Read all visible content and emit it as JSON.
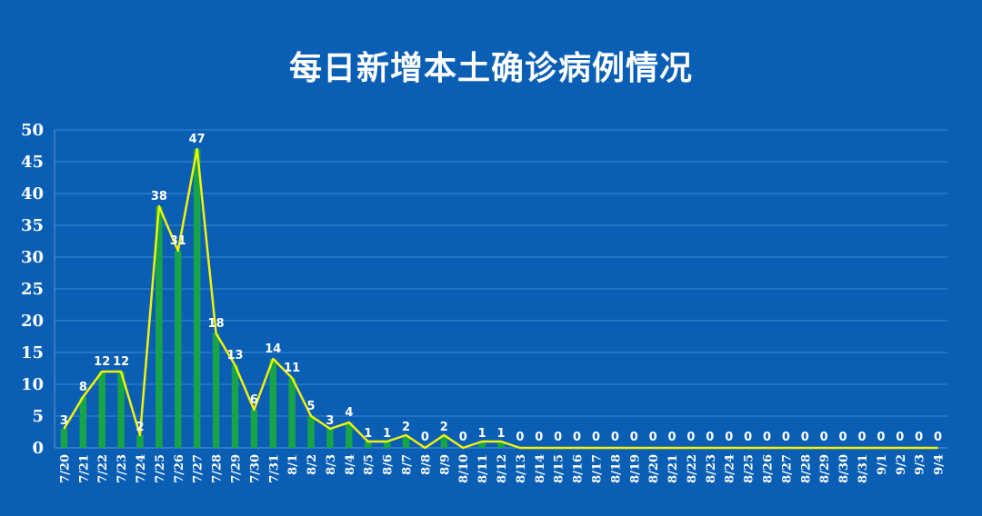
{
  "chart_data": {
    "type": "bar",
    "title": "每日新增本土确诊病例情况",
    "categories": [
      "7/20",
      "7/21",
      "7/22",
      "7/23",
      "7/24",
      "7/25",
      "7/26",
      "7/27",
      "7/28",
      "7/29",
      "7/30",
      "7/31",
      "8/1",
      "8/2",
      "8/3",
      "8/4",
      "8/5",
      "8/6",
      "8/7",
      "8/8",
      "8/9",
      "8/10",
      "8/11",
      "8/12",
      "8/13",
      "8/14",
      "8/15",
      "8/16",
      "8/17",
      "8/18",
      "8/19",
      "8/20",
      "8/21",
      "8/22",
      "8/23",
      "8/24",
      "8/25",
      "8/26",
      "8/27",
      "8/28",
      "8/29",
      "8/30",
      "8/31",
      "9/1",
      "9/2",
      "9/3",
      "9/4"
    ],
    "series": [
      {
        "kind": "bar",
        "values": [
          3,
          8,
          12,
          12,
          2,
          38,
          31,
          47,
          18,
          13,
          6,
          14,
          11,
          5,
          3,
          4,
          1,
          1,
          2,
          0,
          2,
          0,
          1,
          1,
          0,
          0,
          0,
          0,
          0,
          0,
          0,
          0,
          0,
          0,
          0,
          0,
          0,
          0,
          0,
          0,
          0,
          0,
          0,
          0,
          0,
          0,
          0
        ]
      },
      {
        "kind": "line",
        "values": [
          3,
          8,
          12,
          12,
          2,
          38,
          31,
          47,
          18,
          13,
          6,
          14,
          11,
          5,
          3,
          4,
          1,
          1,
          2,
          0,
          2,
          0,
          1,
          1,
          0,
          0,
          0,
          0,
          0,
          0,
          0,
          0,
          0,
          0,
          0,
          0,
          0,
          0,
          0,
          0,
          0,
          0,
          0,
          0,
          0,
          0,
          0
        ]
      }
    ],
    "ylim": [
      0,
      50
    ],
    "yticks": [
      0,
      5,
      10,
      15,
      20,
      25,
      30,
      35,
      40,
      45,
      50
    ],
    "grid": true,
    "legend": "none",
    "colors": {
      "background": "#0a5fb4",
      "bar": "#17a34a",
      "line": "#f2f20a",
      "grid": "#3f86cf",
      "text": "#ffffff"
    }
  }
}
